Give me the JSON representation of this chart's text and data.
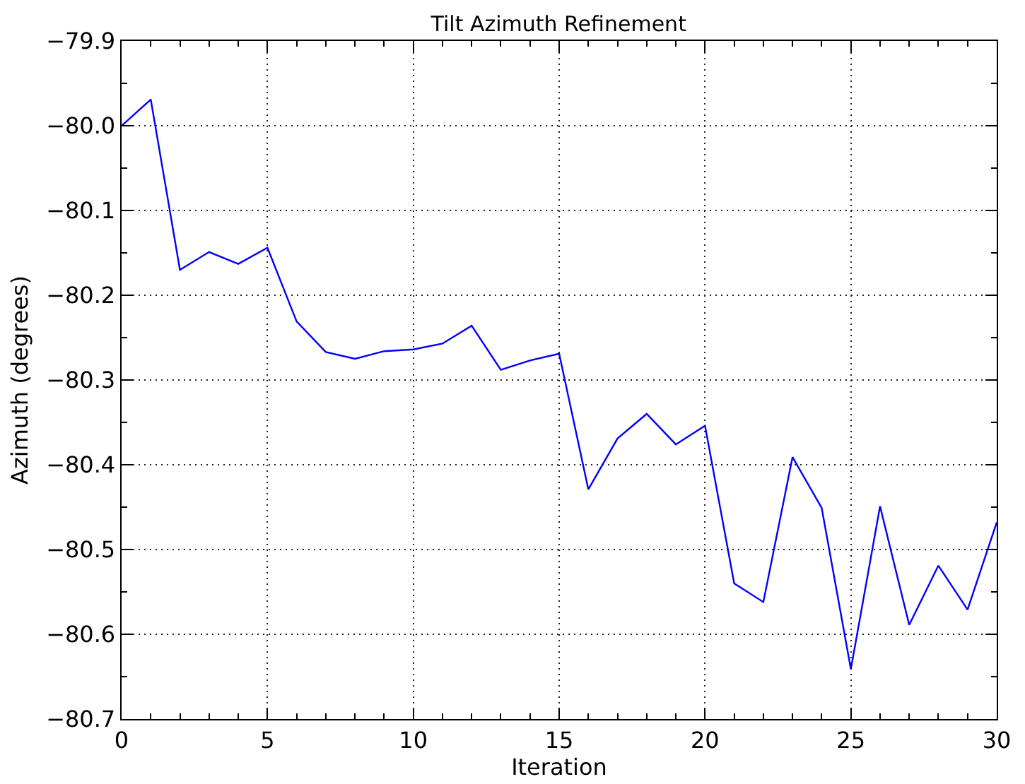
{
  "chart_data": {
    "type": "line",
    "title": "Tilt Azimuth Refinement",
    "xlabel": "Iteration",
    "ylabel": "Azimuth (degrees)",
    "x": [
      0,
      1,
      2,
      3,
      4,
      5,
      6,
      7,
      8,
      9,
      10,
      11,
      12,
      13,
      14,
      15,
      16,
      17,
      18,
      19,
      20,
      21,
      22,
      23,
      24,
      25,
      26,
      27,
      28,
      29,
      30
    ],
    "series": [
      {
        "color": "#0000ff",
        "values": [
          -80.0,
          -79.969,
          -80.17,
          -80.149,
          -80.163,
          -80.144,
          -80.231,
          -80.267,
          -80.275,
          -80.266,
          -80.264,
          -80.257,
          -80.236,
          -80.288,
          -80.277,
          -80.269,
          -80.429,
          -80.369,
          -80.34,
          -80.376,
          -80.354,
          -80.54,
          -80.562,
          -80.391,
          -80.451,
          -80.641,
          -80.449,
          -80.589,
          -80.519,
          -80.571,
          -80.468
        ]
      }
    ],
    "xlim": [
      0,
      30
    ],
    "xticks": [
      0,
      {
        "value": 1,
        "label": null
      },
      {
        "value": 2,
        "label": null
      },
      {
        "value": 3,
        "label": null
      },
      {
        "value": 4,
        "label": null
      },
      5,
      {
        "value": 6,
        "label": null
      },
      {
        "value": 7,
        "label": null
      },
      {
        "value": 8,
        "label": null
      },
      {
        "value": 9,
        "label": null
      },
      10,
      {
        "value": 11,
        "label": null
      },
      {
        "value": 12,
        "label": null
      },
      {
        "value": 13,
        "label": null
      },
      {
        "value": 14,
        "label": null
      },
      15,
      {
        "value": 16,
        "label": null
      },
      {
        "value": 17,
        "label": null
      },
      {
        "value": 18,
        "label": null
      },
      {
        "value": 19,
        "label": null
      },
      20,
      {
        "value": 21,
        "label": null
      },
      {
        "value": 22,
        "label": null
      },
      {
        "value": 23,
        "label": null
      },
      {
        "value": 24,
        "label": null
      },
      25,
      {
        "value": 26,
        "label": null
      },
      {
        "value": 27,
        "label": null
      },
      {
        "value": 28,
        "label": null
      },
      {
        "value": 29,
        "label": null
      },
      30
    ],
    "ylim": [
      -80.7,
      -79.9
    ],
    "yticks": [
      {
        "value": -80.7,
        "label": "−80.7"
      },
      {
        "value": -80.65,
        "label": null
      },
      {
        "value": -80.6,
        "label": "−80.6"
      },
      {
        "value": -80.55,
        "label": null
      },
      {
        "value": -80.5,
        "label": "−80.5"
      },
      {
        "value": -80.45,
        "label": null
      },
      {
        "value": -80.4,
        "label": "−80.4"
      },
      {
        "value": -80.35,
        "label": null
      },
      {
        "value": -80.3,
        "label": "−80.3"
      },
      {
        "value": -80.25,
        "label": null
      },
      {
        "value": -80.2,
        "label": "−80.2"
      },
      {
        "value": -80.15,
        "label": null
      },
      {
        "value": -80.1,
        "label": "−80.1"
      },
      {
        "value": -80.05,
        "label": null
      },
      {
        "value": -80.0,
        "label": "−80.0"
      },
      {
        "value": -79.95,
        "label": null
      },
      {
        "value": -79.9,
        "label": "−79.9"
      }
    ],
    "grid": true,
    "marker": "none",
    "line_style": "solid"
  }
}
